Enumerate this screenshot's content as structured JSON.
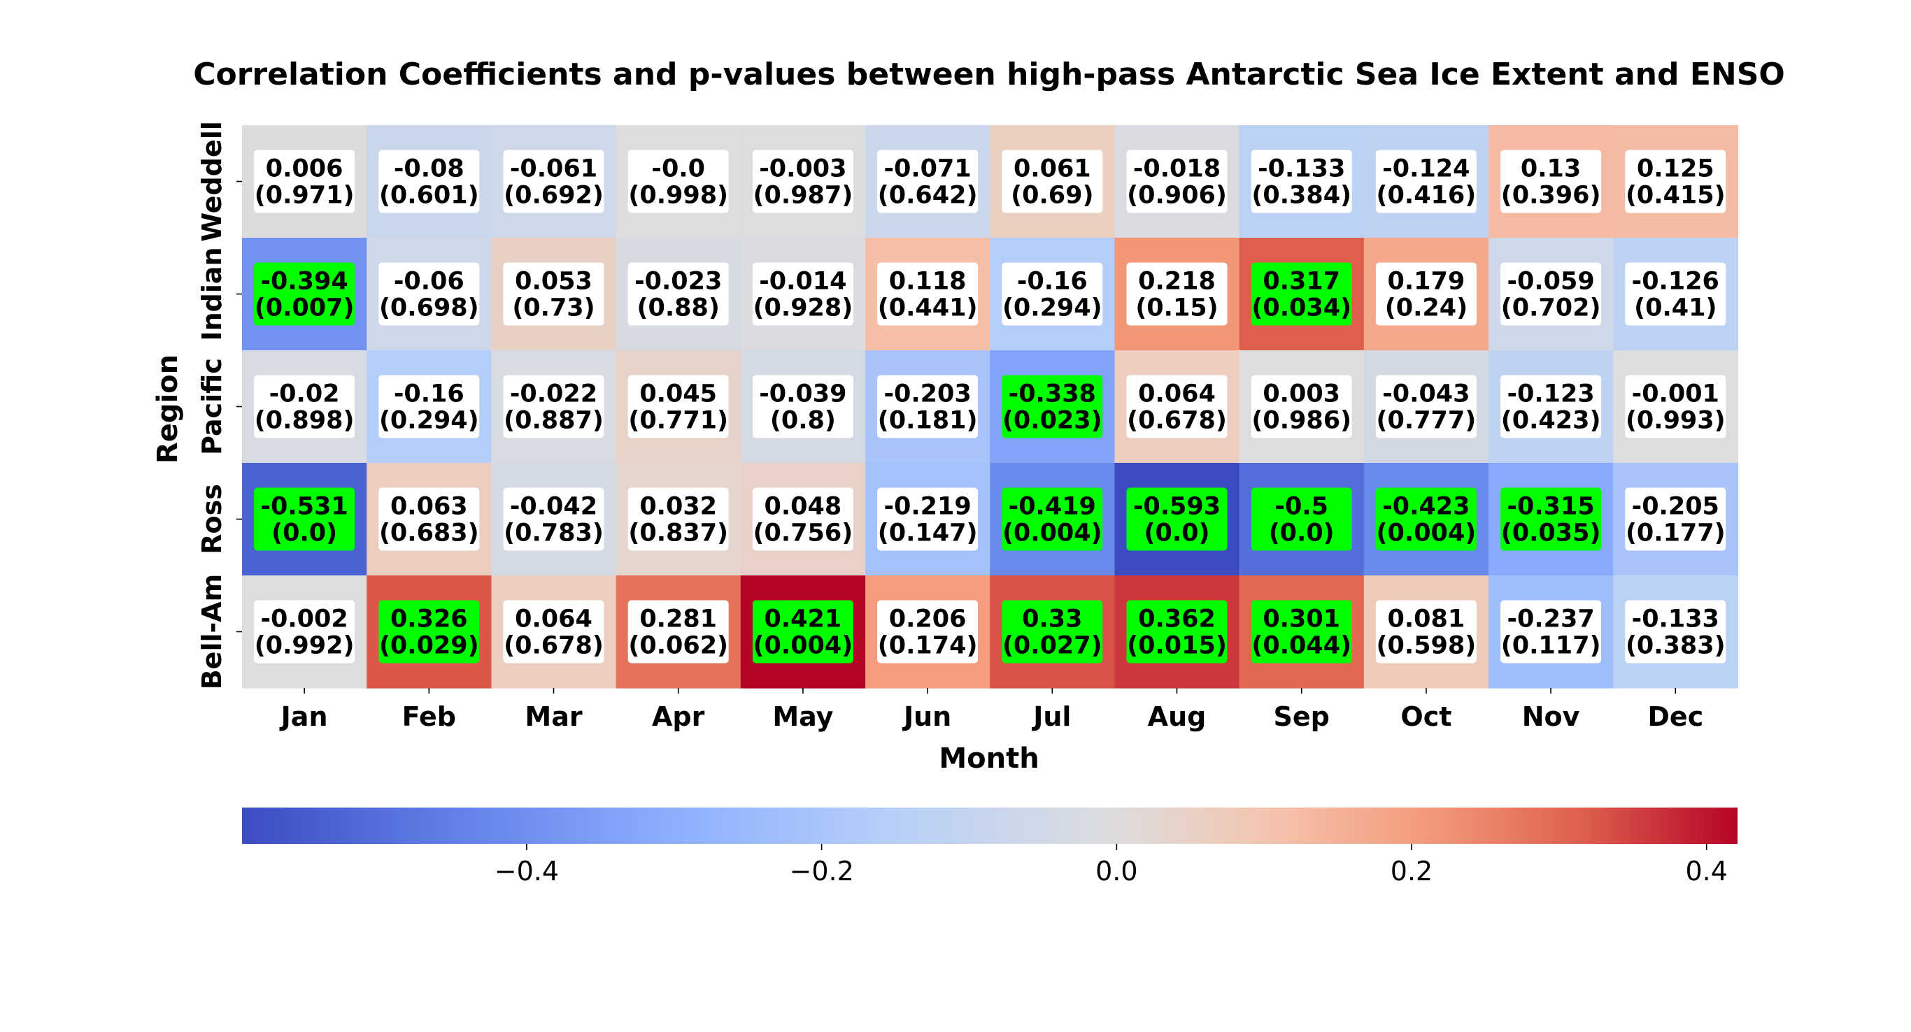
{
  "chart_data": {
    "type": "heatmap",
    "title": "Correlation Coefficients and p-values between high-pass Antarctic Sea Ice Extent and ENSO",
    "xlabel": "Month",
    "ylabel": "Region",
    "x_categories": [
      "Jan",
      "Feb",
      "Mar",
      "Apr",
      "May",
      "Jun",
      "Jul",
      "Aug",
      "Sep",
      "Oct",
      "Nov",
      "Dec"
    ],
    "y_categories": [
      "Weddell",
      "Indian",
      "Pacific",
      "Ross",
      "Bell-Am"
    ],
    "values": [
      [
        "0.006",
        "-0.08",
        "-0.061",
        "-0.0",
        "-0.003",
        "-0.071",
        "0.061",
        "-0.018",
        "-0.133",
        "-0.124",
        "0.13",
        "0.125"
      ],
      [
        "-0.394",
        "-0.06",
        "0.053",
        "-0.023",
        "-0.014",
        "0.118",
        "-0.16",
        "0.218",
        "0.317",
        "0.179",
        "-0.059",
        "-0.126"
      ],
      [
        "-0.02",
        "-0.16",
        "-0.022",
        "0.045",
        "-0.039",
        "-0.203",
        "-0.338",
        "0.064",
        "0.003",
        "-0.043",
        "-0.123",
        "-0.001"
      ],
      [
        "-0.531",
        "0.063",
        "-0.042",
        "0.032",
        "0.048",
        "-0.219",
        "-0.419",
        "-0.593",
        "-0.5",
        "-0.423",
        "-0.315",
        "-0.205"
      ],
      [
        "-0.002",
        "0.326",
        "0.064",
        "0.281",
        "0.421",
        "0.206",
        "0.33",
        "0.362",
        "0.301",
        "0.081",
        "-0.237",
        "-0.133"
      ]
    ],
    "p_values": [
      [
        "(0.971)",
        "(0.601)",
        "(0.692)",
        "(0.998)",
        "(0.987)",
        "(0.642)",
        "(0.69)",
        "(0.906)",
        "(0.384)",
        "(0.416)",
        "(0.396)",
        "(0.415)"
      ],
      [
        "(0.007)",
        "(0.698)",
        "(0.73)",
        "(0.88)",
        "(0.928)",
        "(0.441)",
        "(0.294)",
        "(0.15)",
        "(0.034)",
        "(0.24)",
        "(0.702)",
        "(0.41)"
      ],
      [
        "(0.898)",
        "(0.294)",
        "(0.887)",
        "(0.771)",
        "(0.8)",
        "(0.181)",
        "(0.023)",
        "(0.678)",
        "(0.986)",
        "(0.777)",
        "(0.423)",
        "(0.993)"
      ],
      [
        "(0.0)",
        "(0.683)",
        "(0.783)",
        "(0.837)",
        "(0.756)",
        "(0.147)",
        "(0.004)",
        "(0.0)",
        "(0.0)",
        "(0.004)",
        "(0.035)",
        "(0.177)"
      ],
      [
        "(0.992)",
        "(0.029)",
        "(0.678)",
        "(0.062)",
        "(0.004)",
        "(0.174)",
        "(0.027)",
        "(0.015)",
        "(0.044)",
        "(0.598)",
        "(0.117)",
        "(0.383)"
      ]
    ],
    "significance_threshold": 0.05,
    "highlight_color": "#00ff00",
    "label_box_color": "#ffffff",
    "colormap": "coolwarm",
    "vmin": -0.593,
    "vmax": 0.421,
    "colorbar": {
      "orientation": "horizontal",
      "placement": "bottom",
      "ticks": [
        -0.4,
        -0.2,
        0.0,
        0.2,
        0.4
      ],
      "tick_labels": [
        "−0.4",
        "−0.2",
        "0.0",
        "0.2",
        "0.4"
      ]
    }
  }
}
